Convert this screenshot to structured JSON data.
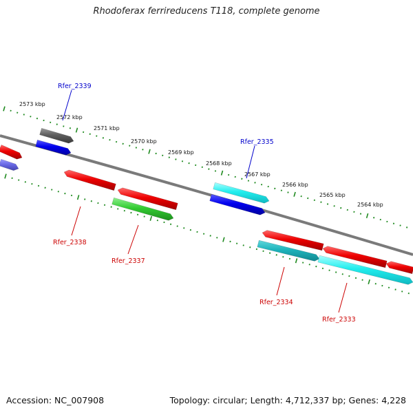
{
  "title": "Rhodoferax ferrireducens T118, complete genome",
  "footer": {
    "accession": "Accession: NC_007908",
    "summary": "Topology: circular; Length: 4,712,337 bp; Genes: 4,228"
  },
  "colors": {
    "backbone": "#7a7a7a",
    "ticks": "#1f8a1f",
    "label_blue": "#0000cc",
    "label_red": "#cc0000"
  },
  "ruler": {
    "kbp_labels": [
      "2573 kbp",
      "2572 kbp",
      "2571 kbp",
      "2570 kbp",
      "2569 kbp",
      "2568 kbp",
      "2567 kbp",
      "2566 kbp",
      "2565 kbp",
      "2564 kbp"
    ]
  },
  "genes": [
    {
      "label": "Rfer_2339",
      "color": "blue"
    },
    {
      "label": "Rfer_2338",
      "color": "red"
    },
    {
      "label": "Rfer_2337",
      "color": "red"
    },
    {
      "label": "Rfer_2335",
      "color": "blue"
    },
    {
      "label": "Rfer_2334",
      "color": "red"
    },
    {
      "label": "Rfer_2333",
      "color": "red"
    }
  ]
}
